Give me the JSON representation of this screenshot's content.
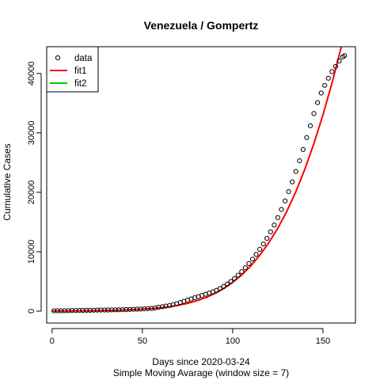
{
  "chart_data": {
    "type": "scatter",
    "title": "Venezuela / Gompertz",
    "xlabel": "Days since 2020-03-24",
    "subtitle": "Simple Moving Avarage (window size = 7)",
    "ylabel": "Cumulative Cases",
    "xlim": [
      -3,
      168
    ],
    "ylim": [
      -2000,
      44500
    ],
    "x_ticks": [
      0,
      50,
      100,
      150
    ],
    "y_ticks": [
      0,
      10000,
      20000,
      30000,
      40000
    ],
    "legend": {
      "position": "top-left",
      "entries": [
        {
          "label": "data",
          "symbol": "circle",
          "color": "#000000"
        },
        {
          "label": "fit1",
          "symbol": "line",
          "color": "#ff0000"
        },
        {
          "label": "fit2",
          "symbol": "line",
          "color": "#00cd00"
        }
      ]
    },
    "series": [
      {
        "name": "data",
        "color": "#000000",
        "x": [
          1,
          3,
          5,
          7,
          9,
          11,
          13,
          15,
          17,
          19,
          21,
          23,
          25,
          27,
          29,
          31,
          33,
          35,
          37,
          39,
          41,
          43,
          45,
          47,
          49,
          51,
          53,
          55,
          57,
          59,
          61,
          63,
          65,
          67,
          69,
          71,
          73,
          75,
          77,
          79,
          81,
          83,
          85,
          87,
          89,
          91,
          93,
          95,
          97,
          99,
          101,
          103,
          105,
          107,
          109,
          111,
          113,
          115,
          117,
          119,
          121,
          123,
          125,
          127,
          129,
          131,
          133,
          135,
          137,
          139,
          141,
          143,
          145,
          147,
          149,
          151,
          153,
          155,
          157,
          159,
          161,
          162
        ],
        "y": [
          50,
          60,
          70,
          80,
          90,
          100,
          110,
          120,
          130,
          140,
          150,
          160,
          170,
          180,
          190,
          200,
          210,
          220,
          230,
          250,
          270,
          290,
          310,
          330,
          350,
          380,
          420,
          470,
          550,
          650,
          750,
          850,
          950,
          1100,
          1250,
          1450,
          1650,
          1850,
          2050,
          2250,
          2450,
          2650,
          2850,
          3050,
          3250,
          3500,
          3800,
          4150,
          4550,
          5000,
          5500,
          6050,
          6650,
          7300,
          8000,
          8750,
          9550,
          10400,
          11300,
          12250,
          13350,
          14500,
          15750,
          17100,
          18550,
          20100,
          21750,
          23500,
          25300,
          27200,
          29200,
          31200,
          33250,
          35100,
          36700,
          38000,
          39200,
          40300,
          41200,
          42100,
          42800,
          43000
        ]
      },
      {
        "name": "fit1",
        "color": "#ff0000",
        "x": [
          0,
          10,
          20,
          30,
          40,
          50,
          55,
          60,
          65,
          70,
          75,
          80,
          85,
          90,
          95,
          100,
          105,
          110,
          115,
          120,
          125,
          130,
          135,
          140,
          145,
          150,
          155,
          160,
          162
        ],
        "y": [
          10,
          30,
          70,
          120,
          200,
          330,
          420,
          560,
          740,
          1000,
          1320,
          1750,
          2280,
          2950,
          3800,
          4850,
          6100,
          7600,
          9400,
          11500,
          13950,
          16800,
          20100,
          23900,
          28200,
          33000,
          38400,
          44300,
          46800
        ]
      }
    ]
  }
}
